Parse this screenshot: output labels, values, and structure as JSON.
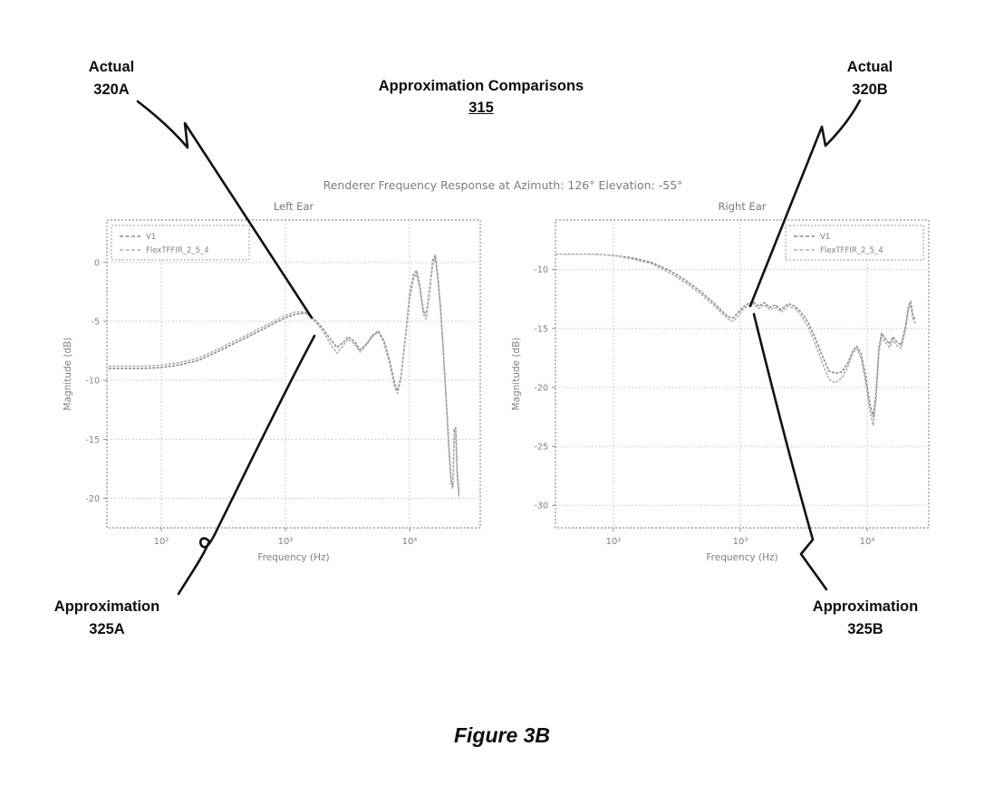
{
  "figure": {
    "caption": "Figure 3B",
    "heading": {
      "title": "Approximation Comparisons",
      "ref": "315"
    },
    "callouts": {
      "actual_a": {
        "label": "Actual",
        "ref": "320A"
      },
      "actual_b": {
        "label": "Actual",
        "ref": "320B"
      },
      "approx_a": {
        "label": "Approximation",
        "ref": "325A"
      },
      "approx_b": {
        "label": "Approximation",
        "ref": "325B"
      }
    }
  },
  "chart_data": {
    "type": "line",
    "suptitle": "Renderer Frequency Response at Azimuth: 126° Elevation: -55°",
    "grid": true,
    "xscale": "log",
    "colors": {
      "v1": "#888888",
      "flex": "#adadad",
      "grid": "#bfbfbf",
      "frame": "#8f8f8f",
      "text": "#808080"
    },
    "charts": [
      {
        "title": "Left Ear",
        "xlabel": "Frequency (Hz)",
        "ylabel": "Magnitude (dB)",
        "xlim_log": [
          1.562,
          4.569
        ],
        "ylim": [
          -22.5,
          3.6
        ],
        "xticks": [
          {
            "f": 100,
            "label": "10²"
          },
          {
            "f": 1000,
            "label": "10³"
          },
          {
            "f": 10000,
            "label": "10⁴"
          }
        ],
        "yticks": [
          {
            "v": 0,
            "label": "0"
          },
          {
            "v": -5,
            "label": "-5"
          },
          {
            "v": -10,
            "label": "-10"
          },
          {
            "v": -15,
            "label": "-15"
          },
          {
            "v": -20,
            "label": "-20"
          }
        ],
        "legend_position": "left",
        "series": [
          {
            "name": "V1",
            "points": [
              [
                35,
                -9.0
              ],
              [
                50,
                -9.0
              ],
              [
                70,
                -9.0
              ],
              [
                100,
                -8.9
              ],
              [
                140,
                -8.7
              ],
              [
                200,
                -8.3
              ],
              [
                280,
                -7.6
              ],
              [
                380,
                -6.9
              ],
              [
                500,
                -6.3
              ],
              [
                650,
                -5.7
              ],
              [
                800,
                -5.2
              ],
              [
                1000,
                -4.7
              ],
              [
                1200,
                -4.4
              ],
              [
                1450,
                -4.3
              ],
              [
                1700,
                -4.8
              ],
              [
                2000,
                -5.6
              ],
              [
                2300,
                -6.5
              ],
              [
                2600,
                -7.2
              ],
              [
                2900,
                -6.8
              ],
              [
                3200,
                -6.3
              ],
              [
                3600,
                -6.7
              ],
              [
                4000,
                -7.4
              ],
              [
                4500,
                -6.9
              ],
              [
                5000,
                -6.2
              ],
              [
                5600,
                -5.8
              ],
              [
                6200,
                -6.6
              ],
              [
                6900,
                -8.3
              ],
              [
                7600,
                -10.3
              ],
              [
                8000,
                -10.9
              ],
              [
                8500,
                -9.7
              ],
              [
                9200,
                -6.5
              ],
              [
                10000,
                -2.8
              ],
              [
                10800,
                -1.0
              ],
              [
                11400,
                -0.7
              ],
              [
                12100,
                -2.0
              ],
              [
                12900,
                -4.1
              ],
              [
                13600,
                -4.5
              ],
              [
                14400,
                -2.5
              ],
              [
                15400,
                0.2
              ],
              [
                16100,
                0.6
              ],
              [
                16900,
                -1.2
              ],
              [
                17800,
                -4.0
              ],
              [
                18700,
                -7.5
              ],
              [
                19700,
                -11.5
              ],
              [
                20700,
                -15.5
              ],
              [
                21600,
                -18.5
              ],
              [
                22300,
                -18.9
              ],
              [
                22900,
                -14.2
              ],
              [
                23500,
                -14.0
              ],
              [
                24200,
                -17.8
              ],
              [
                25000,
                -19.6
              ]
            ]
          },
          {
            "name": "FlexTFFIR_2_5_4",
            "points": [
              [
                35,
                -8.8
              ],
              [
                50,
                -8.8
              ],
              [
                70,
                -8.8
              ],
              [
                100,
                -8.7
              ],
              [
                140,
                -8.5
              ],
              [
                200,
                -8.1
              ],
              [
                280,
                -7.4
              ],
              [
                380,
                -6.7
              ],
              [
                500,
                -6.1
              ],
              [
                650,
                -5.5
              ],
              [
                800,
                -5.0
              ],
              [
                1000,
                -4.5
              ],
              [
                1200,
                -4.2
              ],
              [
                1450,
                -4.2
              ],
              [
                1700,
                -4.9
              ],
              [
                2000,
                -5.8
              ],
              [
                2300,
                -6.9
              ],
              [
                2600,
                -7.7
              ],
              [
                2900,
                -7.1
              ],
              [
                3200,
                -6.5
              ],
              [
                3600,
                -6.9
              ],
              [
                4000,
                -7.6
              ],
              [
                4500,
                -7.0
              ],
              [
                5000,
                -6.3
              ],
              [
                5600,
                -5.9
              ],
              [
                6200,
                -6.8
              ],
              [
                6900,
                -8.6
              ],
              [
                7600,
                -10.6
              ],
              [
                8000,
                -11.1
              ],
              [
                8500,
                -9.9
              ],
              [
                9200,
                -6.8
              ],
              [
                10000,
                -3.1
              ],
              [
                10800,
                -1.3
              ],
              [
                11400,
                -1.0
              ],
              [
                12100,
                -2.3
              ],
              [
                12900,
                -4.4
              ],
              [
                13600,
                -4.8
              ],
              [
                14400,
                -2.8
              ],
              [
                15400,
                -0.1
              ],
              [
                16100,
                0.3
              ],
              [
                16900,
                -1.5
              ],
              [
                17800,
                -4.3
              ],
              [
                18700,
                -7.8
              ],
              [
                19700,
                -11.8
              ],
              [
                20700,
                -15.8
              ],
              [
                21600,
                -18.8
              ],
              [
                22300,
                -19.2
              ],
              [
                22900,
                -14.5
              ],
              [
                23500,
                -14.3
              ],
              [
                24200,
                -18.1
              ],
              [
                25000,
                -20.0
              ]
            ]
          }
        ]
      },
      {
        "title": "Right Ear",
        "xlabel": "Frequency (Hz)",
        "ylabel": "Magnitude (dB)",
        "xlim_log": [
          1.543,
          4.486
        ],
        "ylim": [
          -31.9,
          -5.8
        ],
        "xticks": [
          {
            "f": 100,
            "label": "10²"
          },
          {
            "f": 1000,
            "label": "10³"
          },
          {
            "f": 10000,
            "label": "10⁴"
          }
        ],
        "yticks": [
          {
            "v": -10,
            "label": "-10"
          },
          {
            "v": -15,
            "label": "-15"
          },
          {
            "v": -20,
            "label": "-20"
          },
          {
            "v": -25,
            "label": "-25"
          },
          {
            "v": -30,
            "label": "-30"
          }
        ],
        "legend_position": "right",
        "series": [
          {
            "name": "V1",
            "points": [
              [
                35,
                -8.7
              ],
              [
                50,
                -8.7
              ],
              [
                70,
                -8.7
              ],
              [
                100,
                -8.8
              ],
              [
                140,
                -9.0
              ],
              [
                200,
                -9.4
              ],
              [
                280,
                -10.1
              ],
              [
                380,
                -11.0
              ],
              [
                480,
                -11.8
              ],
              [
                600,
                -12.7
              ],
              [
                700,
                -13.4
              ],
              [
                800,
                -14.0
              ],
              [
                880,
                -14.1
              ],
              [
                950,
                -13.7
              ],
              [
                1050,
                -13.2
              ],
              [
                1150,
                -12.9
              ],
              [
                1250,
                -12.7
              ],
              [
                1400,
                -13.1
              ],
              [
                1550,
                -12.8
              ],
              [
                1700,
                -13.2
              ],
              [
                1900,
                -13.0
              ],
              [
                2100,
                -13.4
              ],
              [
                2400,
                -12.9
              ],
              [
                2700,
                -13.1
              ],
              [
                3000,
                -13.6
              ],
              [
                3400,
                -14.4
              ],
              [
                3900,
                -15.8
              ],
              [
                4400,
                -17.2
              ],
              [
                5000,
                -18.6
              ],
              [
                5600,
                -18.8
              ],
              [
                6300,
                -18.7
              ],
              [
                7000,
                -18.0
              ],
              [
                7700,
                -16.9
              ],
              [
                8300,
                -16.5
              ],
              [
                9000,
                -17.2
              ],
              [
                9800,
                -19.2
              ],
              [
                10500,
                -21.4
              ],
              [
                11200,
                -22.5
              ],
              [
                11800,
                -20.2
              ],
              [
                12400,
                -16.6
              ],
              [
                13000,
                -15.4
              ],
              [
                14000,
                -15.9
              ],
              [
                15000,
                -16.3
              ],
              [
                16000,
                -15.7
              ],
              [
                17000,
                -16.1
              ],
              [
                18500,
                -16.4
              ],
              [
                20000,
                -14.9
              ],
              [
                21200,
                -13.1
              ],
              [
                22000,
                -12.7
              ],
              [
                23000,
                -13.9
              ],
              [
                24000,
                -14.3
              ]
            ]
          },
          {
            "name": "FlexTFFIR_2_5_4",
            "points": [
              [
                35,
                -8.7
              ],
              [
                50,
                -8.7
              ],
              [
                70,
                -8.7
              ],
              [
                100,
                -8.8
              ],
              [
                140,
                -9.1
              ],
              [
                200,
                -9.5
              ],
              [
                280,
                -10.3
              ],
              [
                380,
                -11.2
              ],
              [
                480,
                -12.0
              ],
              [
                600,
                -12.9
              ],
              [
                700,
                -13.6
              ],
              [
                800,
                -14.2
              ],
              [
                880,
                -14.4
              ],
              [
                950,
                -14.0
              ],
              [
                1050,
                -13.4
              ],
              [
                1150,
                -13.1
              ],
              [
                1250,
                -12.9
              ],
              [
                1400,
                -13.3
              ],
              [
                1550,
                -13.0
              ],
              [
                1700,
                -13.4
              ],
              [
                1900,
                -13.2
              ],
              [
                2100,
                -13.6
              ],
              [
                2400,
                -13.1
              ],
              [
                2700,
                -13.3
              ],
              [
                3000,
                -13.9
              ],
              [
                3400,
                -14.8
              ],
              [
                3900,
                -16.3
              ],
              [
                4400,
                -17.8
              ],
              [
                5000,
                -19.3
              ],
              [
                5600,
                -19.6
              ],
              [
                6300,
                -19.2
              ],
              [
                7000,
                -18.3
              ],
              [
                7700,
                -17.1
              ],
              [
                8300,
                -16.7
              ],
              [
                9000,
                -17.6
              ],
              [
                9800,
                -19.8
              ],
              [
                10500,
                -22.0
              ],
              [
                11200,
                -23.2
              ],
              [
                11800,
                -20.8
              ],
              [
                12400,
                -17.0
              ],
              [
                13000,
                -15.7
              ],
              [
                14000,
                -16.2
              ],
              [
                15000,
                -16.6
              ],
              [
                16000,
                -16.0
              ],
              [
                17000,
                -16.4
              ],
              [
                18500,
                -16.7
              ],
              [
                20000,
                -15.2
              ],
              [
                21200,
                -13.4
              ],
              [
                22000,
                -13.0
              ],
              [
                23000,
                -14.2
              ],
              [
                24000,
                -14.6
              ]
            ]
          }
        ]
      }
    ]
  }
}
